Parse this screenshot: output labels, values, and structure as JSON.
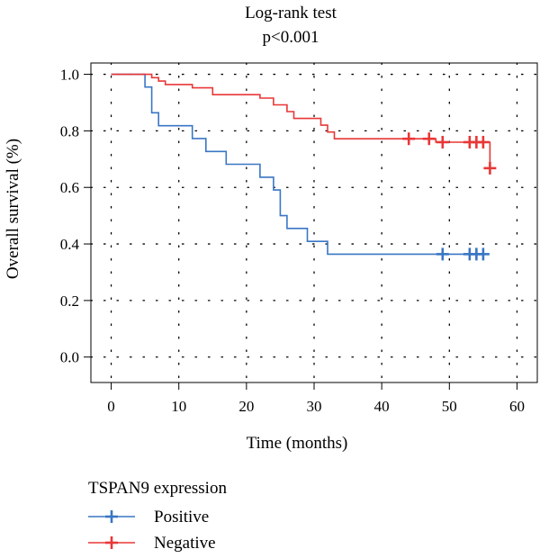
{
  "chart_data": {
    "type": "line",
    "title": "Log-rank test",
    "subtitle": "p<0.001",
    "xlabel": "Time (months)",
    "ylabel": "Overall survival (%)",
    "xlim": [
      -3,
      63
    ],
    "ylim": [
      -0.09,
      1.04
    ],
    "xticks": [
      0,
      10,
      20,
      30,
      40,
      50,
      60
    ],
    "yticks": [
      0.0,
      0.2,
      0.4,
      0.6,
      0.8,
      1.0
    ],
    "xtick_labels": [
      "0",
      "10",
      "20",
      "30",
      "40",
      "50",
      "60"
    ],
    "ytick_labels": [
      "0.0",
      "0.2",
      "0.4",
      "0.6",
      "0.8",
      "1.0"
    ],
    "grid": true,
    "legend": {
      "title": "TSPAN9 expression",
      "placement": "bottom-left",
      "entries": [
        "Positive",
        "Negative"
      ]
    },
    "series": [
      {
        "name": "Positive",
        "color": "#3a76c4",
        "step": [
          [
            0,
            1.0
          ],
          [
            5,
            1.0
          ],
          [
            5,
            0.955
          ],
          [
            6,
            0.955
          ],
          [
            6,
            0.864
          ],
          [
            7,
            0.864
          ],
          [
            7,
            0.818
          ],
          [
            12,
            0.818
          ],
          [
            12,
            0.773
          ],
          [
            14,
            0.773
          ],
          [
            14,
            0.727
          ],
          [
            17,
            0.727
          ],
          [
            17,
            0.682
          ],
          [
            22,
            0.682
          ],
          [
            22,
            0.636
          ],
          [
            24,
            0.636
          ],
          [
            24,
            0.591
          ],
          [
            25,
            0.591
          ],
          [
            25,
            0.5
          ],
          [
            26,
            0.5
          ],
          [
            26,
            0.455
          ],
          [
            29,
            0.455
          ],
          [
            29,
            0.409
          ],
          [
            32,
            0.409
          ],
          [
            32,
            0.364
          ],
          [
            55,
            0.364
          ]
        ],
        "censored": [
          [
            49,
            0.364
          ],
          [
            53,
            0.364
          ],
          [
            54,
            0.364
          ],
          [
            55,
            0.364
          ]
        ]
      },
      {
        "name": "Negative",
        "color": "#e83737",
        "step": [
          [
            0,
            1.0
          ],
          [
            6,
            1.0
          ],
          [
            6,
            0.988
          ],
          [
            7,
            0.988
          ],
          [
            7,
            0.976
          ],
          [
            8,
            0.976
          ],
          [
            8,
            0.964
          ],
          [
            12,
            0.964
          ],
          [
            12,
            0.952
          ],
          [
            15,
            0.952
          ],
          [
            15,
            0.928
          ],
          [
            22,
            0.928
          ],
          [
            22,
            0.916
          ],
          [
            24,
            0.916
          ],
          [
            24,
            0.892
          ],
          [
            26,
            0.892
          ],
          [
            26,
            0.868
          ],
          [
            27,
            0.868
          ],
          [
            27,
            0.844
          ],
          [
            31,
            0.844
          ],
          [
            31,
            0.82
          ],
          [
            32,
            0.82
          ],
          [
            32,
            0.796
          ],
          [
            33,
            0.796
          ],
          [
            33,
            0.772
          ],
          [
            48,
            0.772
          ],
          [
            48,
            0.76
          ],
          [
            56,
            0.76
          ],
          [
            56,
            0.668
          ],
          [
            56,
            0.668
          ]
        ],
        "censored": [
          [
            44,
            0.772
          ],
          [
            47,
            0.772
          ],
          [
            49,
            0.76
          ],
          [
            53,
            0.76
          ],
          [
            54,
            0.76
          ],
          [
            55,
            0.76
          ],
          [
            56,
            0.668
          ]
        ]
      }
    ]
  }
}
